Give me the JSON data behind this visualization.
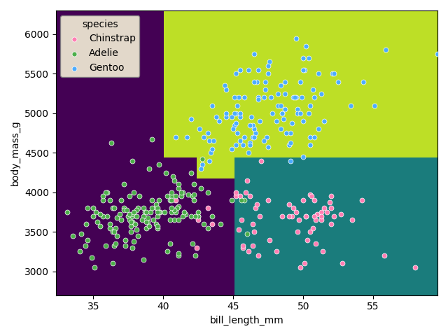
{
  "xlabel": "bill_length_mm",
  "ylabel": "body_mass_g",
  "xlim": [
    32.3,
    59.6
  ],
  "ylim": [
    2700,
    6300
  ],
  "legend_title": "species",
  "figsize": [
    6.4,
    4.8
  ],
  "dpi": 100,
  "region_colors_list": [
    "#440154",
    "#bddf26",
    "#1a7c7c"
  ],
  "scatter_colors": {
    "Chinstrap": "#ff7eb3",
    "Adelie": "#4daf4a",
    "Gentoo": "#4cacff"
  }
}
